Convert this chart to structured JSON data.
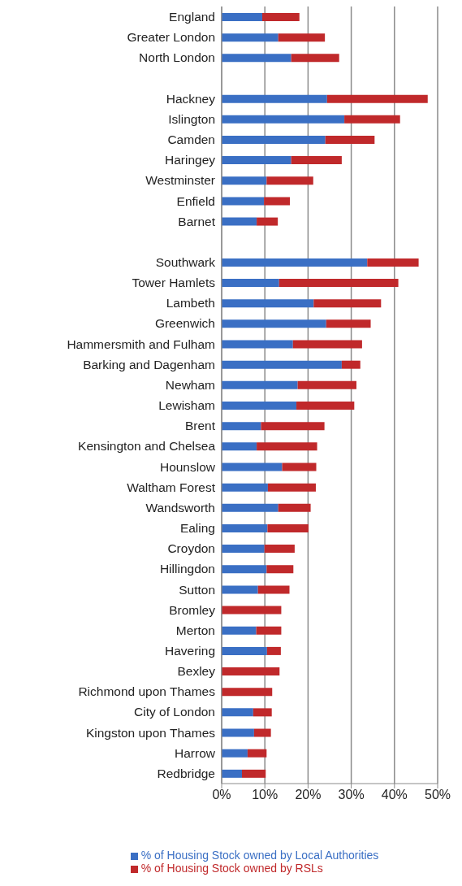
{
  "chart_data": {
    "type": "bar",
    "orientation": "horizontal",
    "stacked": true,
    "categories": [
      "England",
      "Greater London",
      "North London",
      null,
      "Hackney",
      "Islington",
      "Camden",
      "Haringey",
      "Westminster",
      "Enfield",
      "Barnet",
      null,
      "Southwark",
      "Tower Hamlets",
      "Lambeth",
      "Greenwich",
      "Hammersmith and Fulham",
      "Barking and Dagenham",
      "Newham",
      "Lewisham",
      "Brent",
      "Kensington and Chelsea",
      "Hounslow",
      "Waltham Forest",
      "Wandsworth",
      "Ealing",
      "Croydon",
      "Hillingdon",
      "Sutton",
      "Bromley",
      "Merton",
      "Havering",
      "Bexley",
      "Richmond upon Thames",
      "City of London",
      "Kingston upon Thames",
      "Harrow",
      "Redbridge"
    ],
    "series": [
      {
        "name": "% of Housing Stock owned by Local Authorities",
        "color": "#3a6fc4",
        "values": [
          9.4,
          13.1,
          16.1,
          null,
          24.4,
          28.4,
          24.0,
          16.1,
          10.4,
          9.8,
          8.1,
          null,
          33.7,
          13.3,
          21.3,
          24.2,
          16.5,
          27.8,
          17.6,
          17.3,
          9.1,
          8.1,
          14.0,
          10.7,
          13.1,
          10.6,
          9.9,
          10.4,
          8.4,
          0,
          8.0,
          10.5,
          0,
          0,
          7.3,
          7.5,
          6.0,
          4.7
        ]
      },
      {
        "name": "% of Housing Stock owned by RSLs",
        "color": "#c0292b",
        "values": [
          8.6,
          10.8,
          11.1,
          null,
          23.3,
          12.9,
          11.4,
          11.7,
          10.8,
          6.0,
          4.9,
          null,
          11.9,
          27.6,
          15.6,
          10.3,
          16.0,
          4.3,
          13.6,
          13.4,
          14.7,
          14.0,
          7.9,
          11.1,
          7.5,
          9.5,
          7.0,
          6.2,
          7.3,
          13.8,
          5.8,
          3.2,
          13.4,
          11.7,
          4.3,
          3.9,
          4.4,
          5.5
        ]
      }
    ],
    "xlim": [
      0,
      50
    ],
    "xticks": [
      {
        "value": 0,
        "label": "0%"
      },
      {
        "value": 10,
        "label": "10%"
      },
      {
        "value": 20,
        "label": "20%"
      },
      {
        "value": 30,
        "label": "30%"
      },
      {
        "value": 40,
        "label": "40%"
      },
      {
        "value": 50,
        "label": "50%"
      }
    ],
    "grid": "x",
    "legend": "bottom"
  }
}
